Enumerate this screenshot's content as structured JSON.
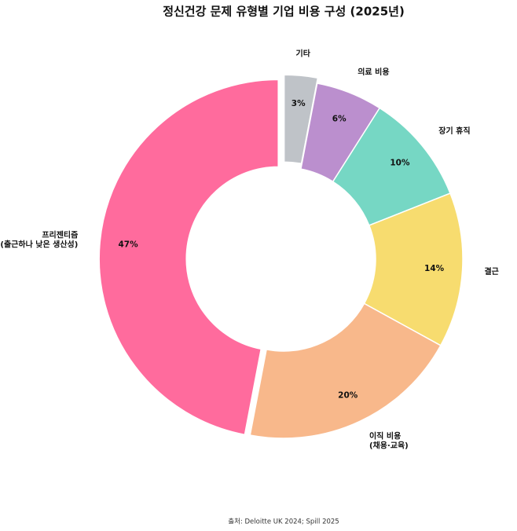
{
  "chart_data": {
    "type": "donut",
    "title": "정신건강 문제 유형별 기업 비용 구성 (2025년)",
    "categories": [
      "기타",
      "의료 비용",
      "장기 휴직",
      "결근",
      "이직 비용\n(채용·교육)",
      "프리젠티즘\n(출근하나 낮은 생산성)"
    ],
    "values": [
      3,
      6,
      10,
      14,
      20,
      47
    ],
    "value_labels": [
      "3%",
      "6%",
      "10%",
      "14%",
      "20%",
      "47%"
    ],
    "colors": [
      "#bfc3c8",
      "#bb8fce",
      "#76d7c4",
      "#f7dc6f",
      "#f8b88b",
      "#ff6b9d"
    ],
    "explode": [
      0.03,
      0,
      0,
      0,
      0,
      0.03
    ],
    "source": "출처: Deloitte UK 2024; Spill 2025"
  }
}
